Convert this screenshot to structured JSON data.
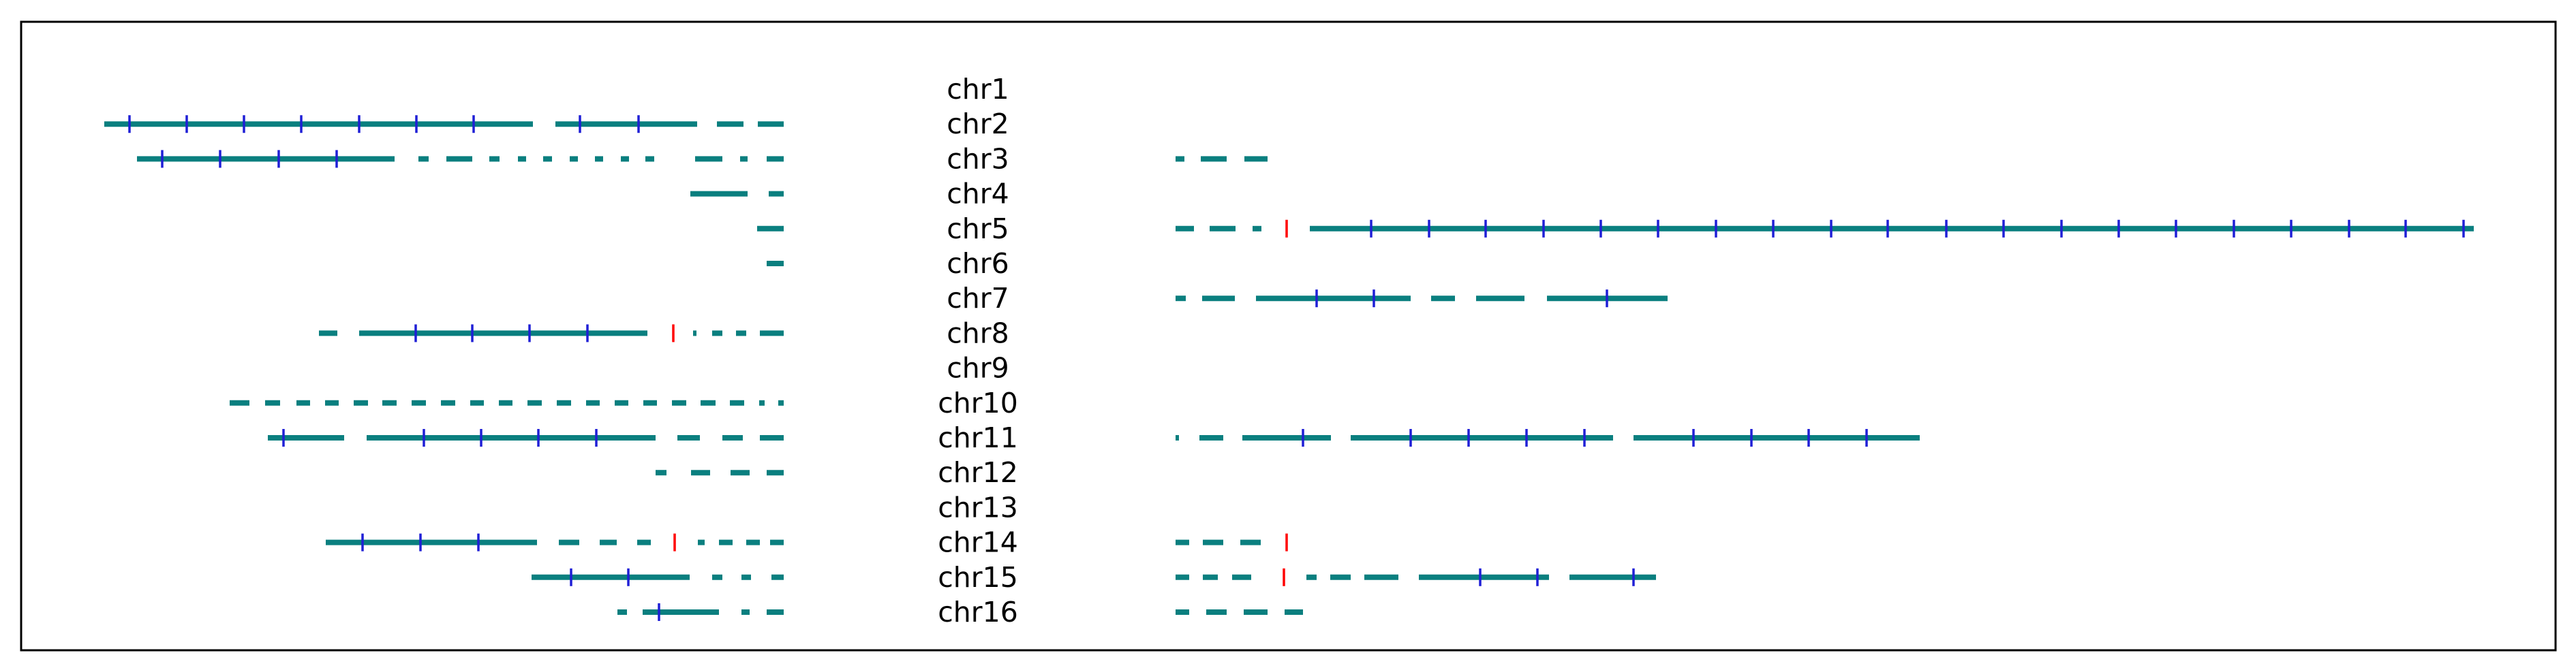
{
  "colors": {
    "segment": "#0a7f7f",
    "tick": "#1f1fd6",
    "marker": "#ff0000",
    "frame": "#000000",
    "text": "#000000"
  },
  "chromosomes": [
    {
      "label": "chr1",
      "left": [],
      "right": []
    },
    {
      "label": "chr2",
      "left": [
        [
          153,
          782,
          [
            190,
            274,
            358,
            442,
            527,
            611,
            695
          ]
        ],
        [
          815,
          1023,
          [
            851,
            937
          ]
        ],
        [
          1052,
          1091,
          []
        ],
        [
          1112,
          1150,
          []
        ]
      ],
      "right": []
    },
    {
      "label": "chr3",
      "left": [
        [
          201,
          579,
          [
            238,
            323,
            409,
            494
          ]
        ],
        [
          614,
          629,
          []
        ],
        [
          655,
          693,
          []
        ],
        [
          718,
          733,
          []
        ],
        [
          760,
          772,
          []
        ],
        [
          797,
          810,
          []
        ],
        [
          836,
          848,
          []
        ],
        [
          873,
          885,
          []
        ],
        [
          911,
          923,
          []
        ],
        [
          947,
          960,
          []
        ],
        [
          1020,
          1060,
          []
        ],
        [
          1086,
          1097,
          []
        ],
        [
          1125,
          1150,
          []
        ]
      ],
      "right": [
        [
          1725,
          1738,
          []
        ],
        [
          1762,
          1800,
          []
        ],
        [
          1826,
          1860,
          []
        ]
      ]
    },
    {
      "label": "chr4",
      "left": [
        [
          1013,
          1097,
          []
        ],
        [
          1128,
          1150,
          []
        ]
      ],
      "right": []
    },
    {
      "label": "chr5",
      "left": [
        [
          1111,
          1150,
          []
        ]
      ],
      "right": [
        [
          1725,
          1752,
          []
        ],
        [
          1775,
          1813,
          []
        ],
        [
          1838,
          1851,
          []
        ],
        [
          1922,
          3630,
          [
            2012,
            2097,
            2180,
            2265,
            2349,
            2433,
            2518,
            2602,
            2687,
            2770,
            2856,
            2940,
            3025,
            3109,
            3193,
            3278,
            3362,
            3447,
            3530,
            3615
          ]
        ]
      ],
      "markers": {
        "right": [
          1888
        ]
      }
    },
    {
      "label": "chr6",
      "left": [
        [
          1125,
          1150,
          []
        ]
      ],
      "right": []
    },
    {
      "label": "chr7",
      "left": [],
      "right": [
        [
          1725,
          1740,
          []
        ],
        [
          1764,
          1812,
          []
        ],
        [
          1843,
          2070,
          [
            1932,
            2016
          ]
        ],
        [
          2100,
          2135,
          []
        ],
        [
          2166,
          2237,
          []
        ],
        [
          2270,
          2447,
          [
            2358
          ]
        ]
      ]
    },
    {
      "label": "chr8",
      "left": [
        [
          468,
          495,
          []
        ],
        [
          527,
          950,
          [
            610,
            693,
            777,
            862
          ]
        ],
        [
          1017,
          1022,
          []
        ],
        [
          1045,
          1060,
          []
        ],
        [
          1080,
          1095,
          []
        ],
        [
          1115,
          1150,
          []
        ]
      ],
      "right": [],
      "markers": {
        "left": [
          988
        ]
      }
    },
    {
      "label": "chr9",
      "left": [],
      "right": []
    },
    {
      "label": "chr10",
      "left": [
        [
          337,
          366,
          []
        ],
        [
          389,
          411,
          []
        ],
        [
          435,
          455,
          []
        ],
        [
          477,
          497,
          []
        ],
        [
          519,
          540,
          []
        ],
        [
          561,
          582,
          []
        ],
        [
          604,
          625,
          []
        ],
        [
          647,
          668,
          []
        ],
        [
          690,
          710,
          []
        ],
        [
          732,
          752,
          []
        ],
        [
          774,
          795,
          []
        ],
        [
          817,
          838,
          []
        ],
        [
          860,
          880,
          []
        ],
        [
          902,
          922,
          []
        ],
        [
          944,
          964,
          []
        ],
        [
          986,
          1007,
          []
        ],
        [
          1028,
          1050,
          []
        ],
        [
          1071,
          1092,
          []
        ],
        [
          1114,
          1122,
          []
        ],
        [
          1142,
          1150,
          []
        ]
      ],
      "right": []
    },
    {
      "label": "chr11",
      "left": [
        [
          393,
          505,
          [
            416
          ]
        ],
        [
          538,
          962,
          [
            622,
            706,
            790,
            875
          ]
        ],
        [
          994,
          1027,
          []
        ],
        [
          1060,
          1090,
          []
        ],
        [
          1115,
          1150,
          []
        ]
      ],
      "right": [
        [
          1725,
          1730,
          []
        ],
        [
          1760,
          1795,
          []
        ],
        [
          1823,
          1953,
          [
            1912
          ]
        ],
        [
          1982,
          2367,
          [
            2070,
            2155,
            2240,
            2325
          ]
        ],
        [
          2397,
          2817,
          [
            2485,
            2570,
            2654,
            2739
          ]
        ]
      ]
    },
    {
      "label": "chr12",
      "left": [
        [
          962,
          978,
          []
        ],
        [
          1014,
          1042,
          []
        ],
        [
          1072,
          1100,
          []
        ],
        [
          1125,
          1150,
          []
        ]
      ],
      "right": []
    },
    {
      "label": "chr13",
      "left": [],
      "right": []
    },
    {
      "label": "chr14",
      "left": [
        [
          478,
          788,
          [
            532,
            617,
            702
          ]
        ],
        [
          820,
          850,
          []
        ],
        [
          880,
          905,
          []
        ],
        [
          935,
          955,
          []
        ],
        [
          1024,
          1034,
          []
        ],
        [
          1055,
          1075,
          []
        ],
        [
          1095,
          1115,
          []
        ],
        [
          1130,
          1150,
          []
        ]
      ],
      "right": [
        [
          1725,
          1745,
          []
        ],
        [
          1765,
          1795,
          []
        ],
        [
          1820,
          1850,
          []
        ]
      ],
      "markers": {
        "left": [
          990
        ],
        "right": [
          1888
        ]
      }
    },
    {
      "label": "chr15",
      "left": [
        [
          780,
          1012,
          [
            838,
            922
          ]
        ],
        [
          1045,
          1060,
          []
        ],
        [
          1088,
          1102,
          []
        ],
        [
          1132,
          1150,
          []
        ]
      ],
      "right": [
        [
          1725,
          1745,
          []
        ],
        [
          1765,
          1787,
          []
        ],
        [
          1808,
          1836,
          []
        ],
        [
          1917,
          1932,
          []
        ],
        [
          1952,
          1982,
          []
        ],
        [
          2002,
          2052,
          []
        ],
        [
          2082,
          2273,
          [
            2172,
            2256
          ]
        ],
        [
          2303,
          2430,
          [
            2397
          ]
        ]
      ],
      "markers": {
        "right": [
          1884
        ]
      }
    },
    {
      "label": "chr16",
      "left": [
        [
          906,
          920,
          []
        ],
        [
          943,
          1055,
          [
            967
          ]
        ],
        [
          1088,
          1100,
          []
        ],
        [
          1125,
          1150,
          []
        ]
      ],
      "right": [
        [
          1725,
          1745,
          []
        ],
        [
          1770,
          1800,
          []
        ],
        [
          1825,
          1860,
          []
        ],
        [
          1885,
          1912,
          []
        ]
      ]
    }
  ]
}
